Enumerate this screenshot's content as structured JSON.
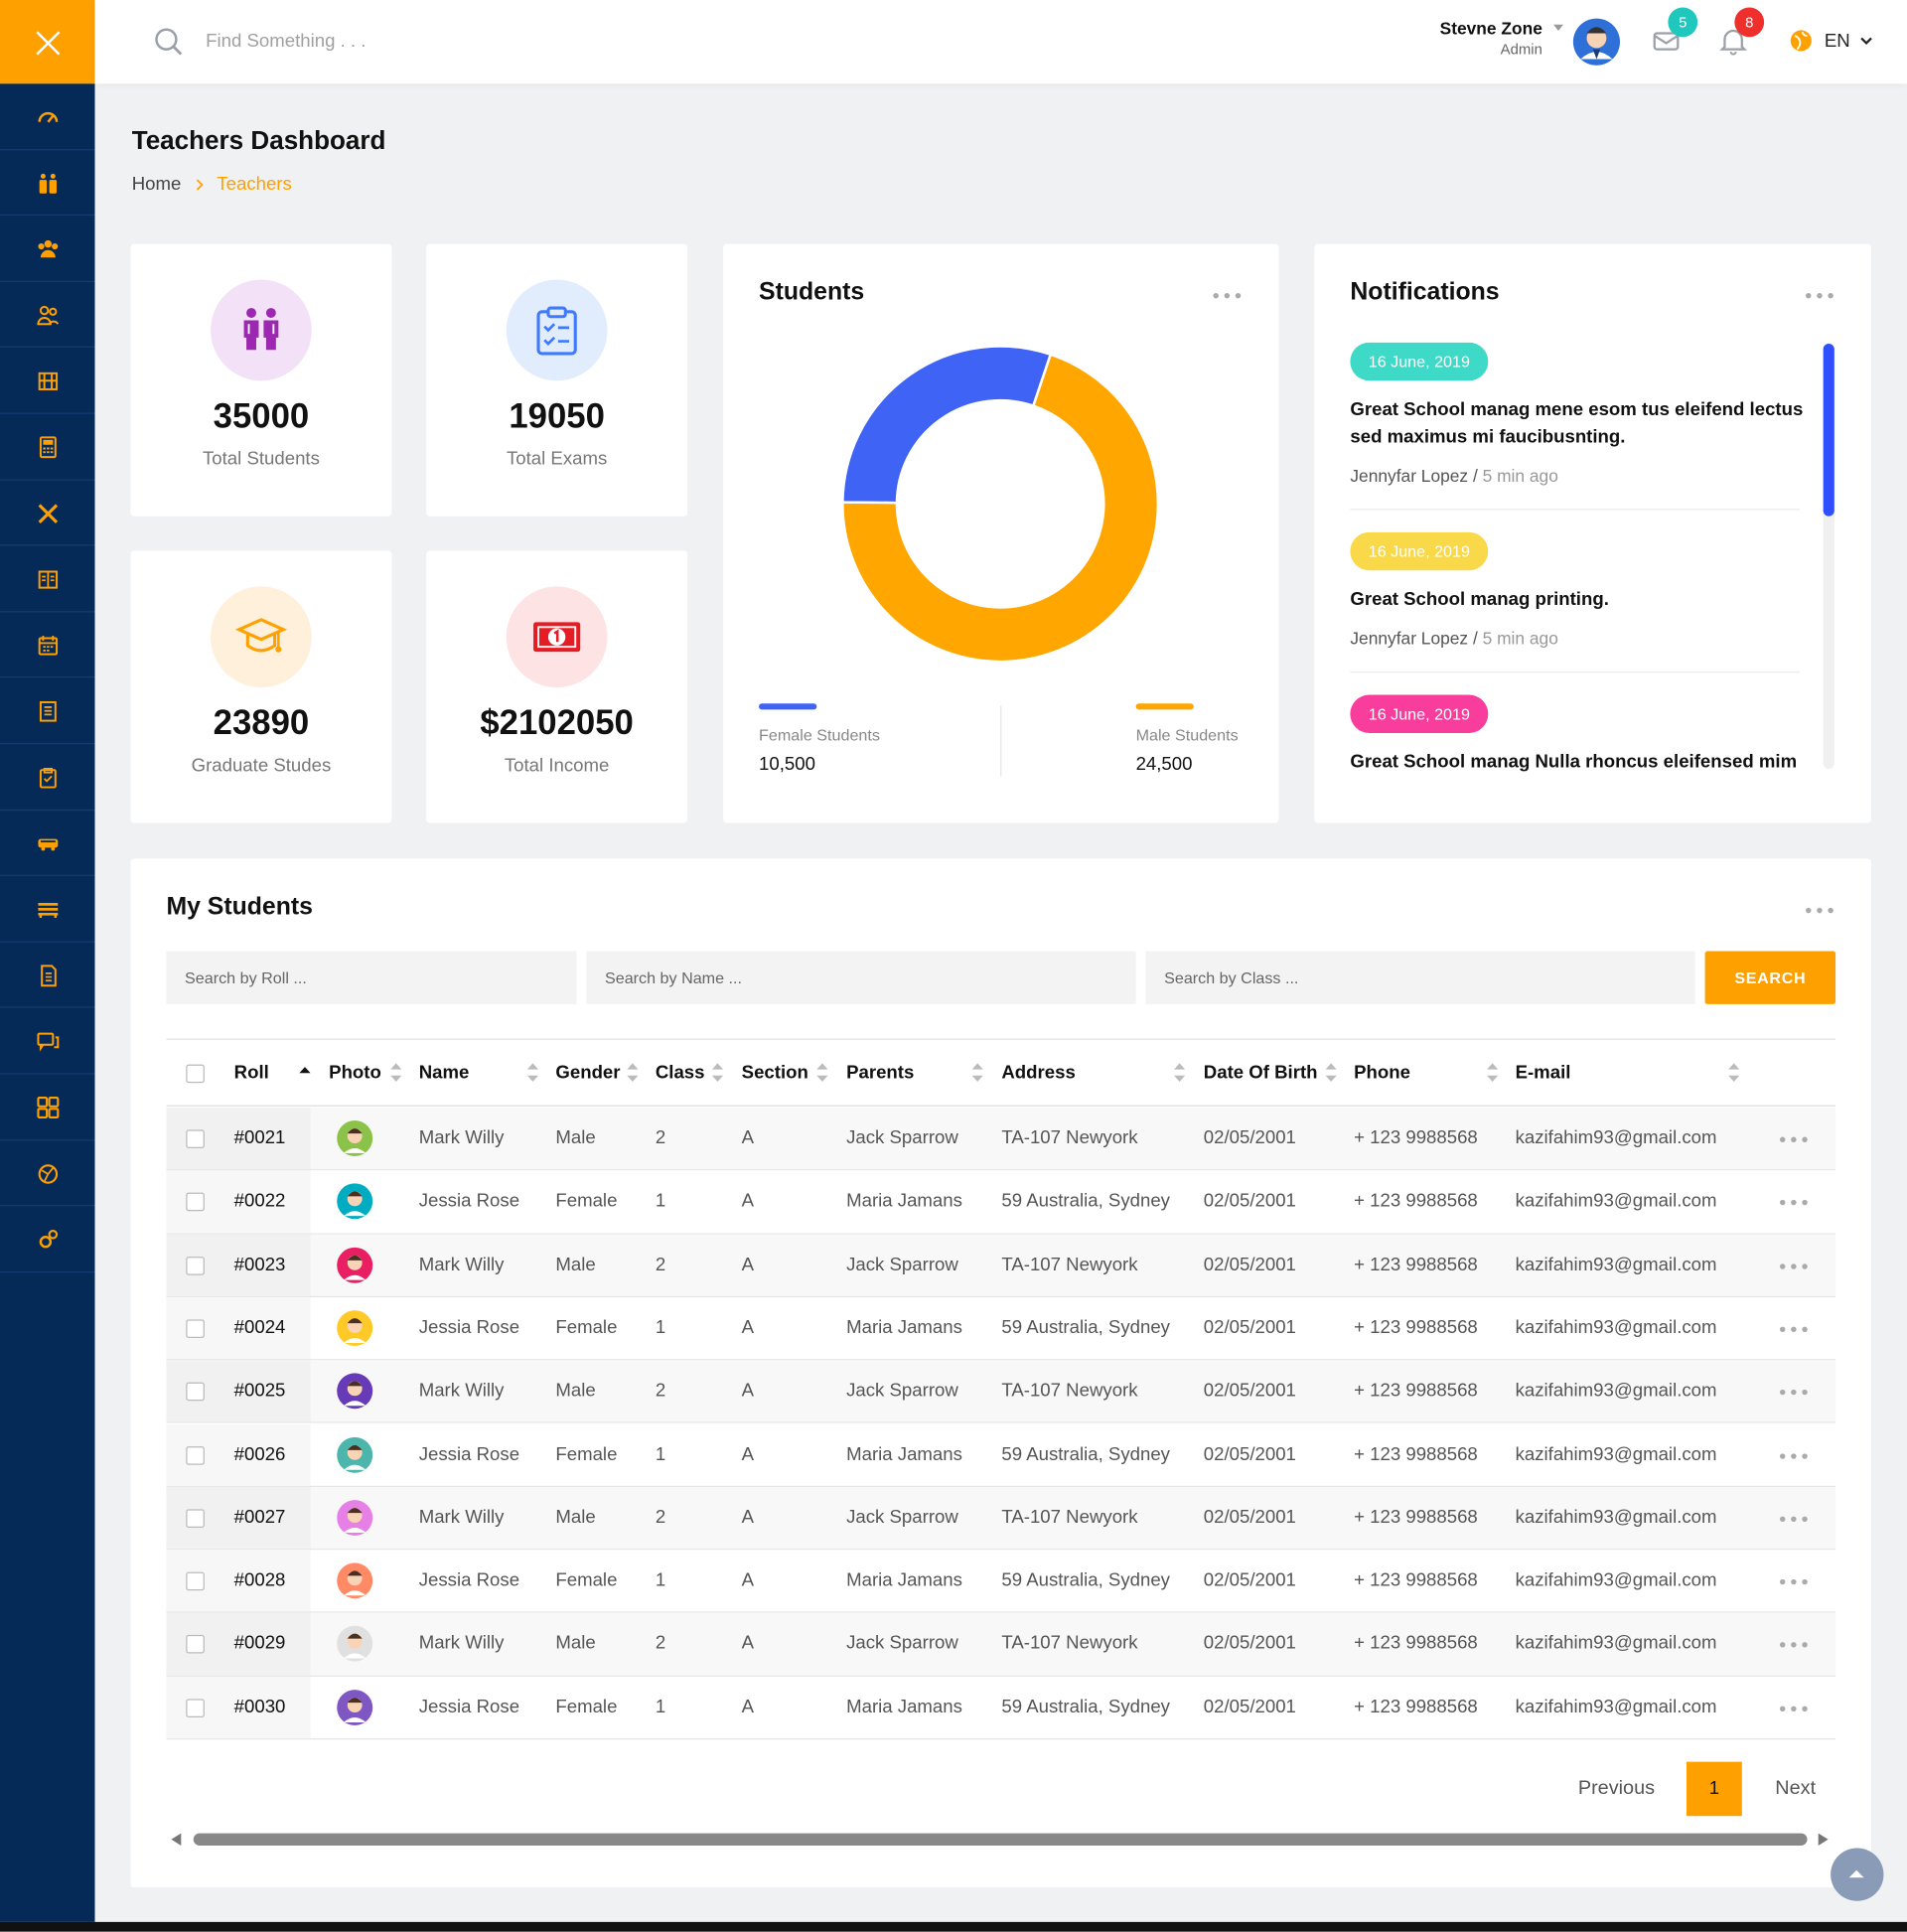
{
  "header": {
    "search_placeholder": "Find Something . . .",
    "user_name": "Stevne Zone",
    "user_role": "Admin",
    "messages_count": 5,
    "notifications_count": 8,
    "language": "EN"
  },
  "page": {
    "title": "Teachers Dashboard",
    "breadcrumb": [
      "Home",
      "Teachers"
    ]
  },
  "stats": [
    {
      "value": "35000",
      "label": "Total Students"
    },
    {
      "value": "19050",
      "label": "Total Exams"
    },
    {
      "value": "23890",
      "label": "Graduate Studes"
    },
    {
      "value": "$2102050",
      "label": "Total Income"
    }
  ],
  "students_chart": {
    "type": "pie",
    "title": "Students",
    "series": [
      {
        "name": "Female Students",
        "color": "#3f63f5",
        "value": 10500,
        "value_label": "10,500"
      },
      {
        "name": "Male Students",
        "color": "#ffa600",
        "value": 24500,
        "value_label": "24,500"
      }
    ]
  },
  "notifications": {
    "title": "Notifications",
    "items": [
      {
        "date": "16 June, 2019",
        "color": "#3fd9c7",
        "text": [
          "Great School manag mene esom tus eleifend lectus",
          "sed maximus mi faucibusnting."
        ],
        "author": "Jennyfar Lopez",
        "time": "5 min ago"
      },
      {
        "date": "16 June, 2019",
        "color": "#f9d84a",
        "text": [
          "Great School manag printing."
        ],
        "author": "Jennyfar Lopez",
        "time": "5 min ago"
      },
      {
        "date": "16 June, 2019",
        "color": "#f93d9c",
        "text": [
          "Great School manag Nulla rhoncus eleifensed mim"
        ]
      }
    ]
  },
  "students_table": {
    "title": "My Students",
    "search_placeholders": [
      "Search by Roll ...",
      "Search by Name ...",
      "Search by Class ..."
    ],
    "search_button": "SEARCH",
    "columns": [
      "Roll",
      "Photo",
      "Name",
      "Gender",
      "Class",
      "Section",
      "Parents",
      "Address",
      "Date Of Birth",
      "Phone",
      "E-mail"
    ],
    "rows": [
      [
        "#0021",
        "Mark Willy",
        "Male",
        "2",
        "A",
        "Jack Sparrow",
        "TA-107 Newyork",
        "02/05/2001",
        "+ 123 9988568",
        "kazifahim93@gmail.com"
      ],
      [
        "#0022",
        "Jessia Rose",
        "Female",
        "1",
        "A",
        "Maria Jamans",
        "59 Australia, Sydney",
        "02/05/2001",
        "+ 123 9988568",
        "kazifahim93@gmail.com"
      ],
      [
        "#0023",
        "Mark Willy",
        "Male",
        "2",
        "A",
        "Jack Sparrow",
        "TA-107 Newyork",
        "02/05/2001",
        "+ 123 9988568",
        "kazifahim93@gmail.com"
      ],
      [
        "#0024",
        "Jessia Rose",
        "Female",
        "1",
        "A",
        "Maria Jamans",
        "59 Australia, Sydney",
        "02/05/2001",
        "+ 123 9988568",
        "kazifahim93@gmail.com"
      ],
      [
        "#0025",
        "Mark Willy",
        "Male",
        "2",
        "A",
        "Jack Sparrow",
        "TA-107 Newyork",
        "02/05/2001",
        "+ 123 9988568",
        "kazifahim93@gmail.com"
      ],
      [
        "#0026",
        "Jessia Rose",
        "Female",
        "1",
        "A",
        "Maria Jamans",
        "59 Australia, Sydney",
        "02/05/2001",
        "+ 123 9988568",
        "kazifahim93@gmail.com"
      ],
      [
        "#0027",
        "Mark Willy",
        "Male",
        "2",
        "A",
        "Jack Sparrow",
        "TA-107 Newyork",
        "02/05/2001",
        "+ 123 9988568",
        "kazifahim93@gmail.com"
      ],
      [
        "#0028",
        "Jessia Rose",
        "Female",
        "1",
        "A",
        "Maria Jamans",
        "59 Australia, Sydney",
        "02/05/2001",
        "+ 123 9988568",
        "kazifahim93@gmail.com"
      ],
      [
        "#0029",
        "Mark Willy",
        "Male",
        "2",
        "A",
        "Jack Sparrow",
        "TA-107 Newyork",
        "02/05/2001",
        "+ 123 9988568",
        "kazifahim93@gmail.com"
      ],
      [
        "#0030",
        "Jessia Rose",
        "Female",
        "1",
        "A",
        "Maria Jamans",
        "59 Australia, Sydney",
        "02/05/2001",
        "+ 123 9988568",
        "kazifahim93@gmail.com"
      ]
    ],
    "pagination": {
      "previous": "Previous",
      "current": "1",
      "next": "Next"
    }
  }
}
